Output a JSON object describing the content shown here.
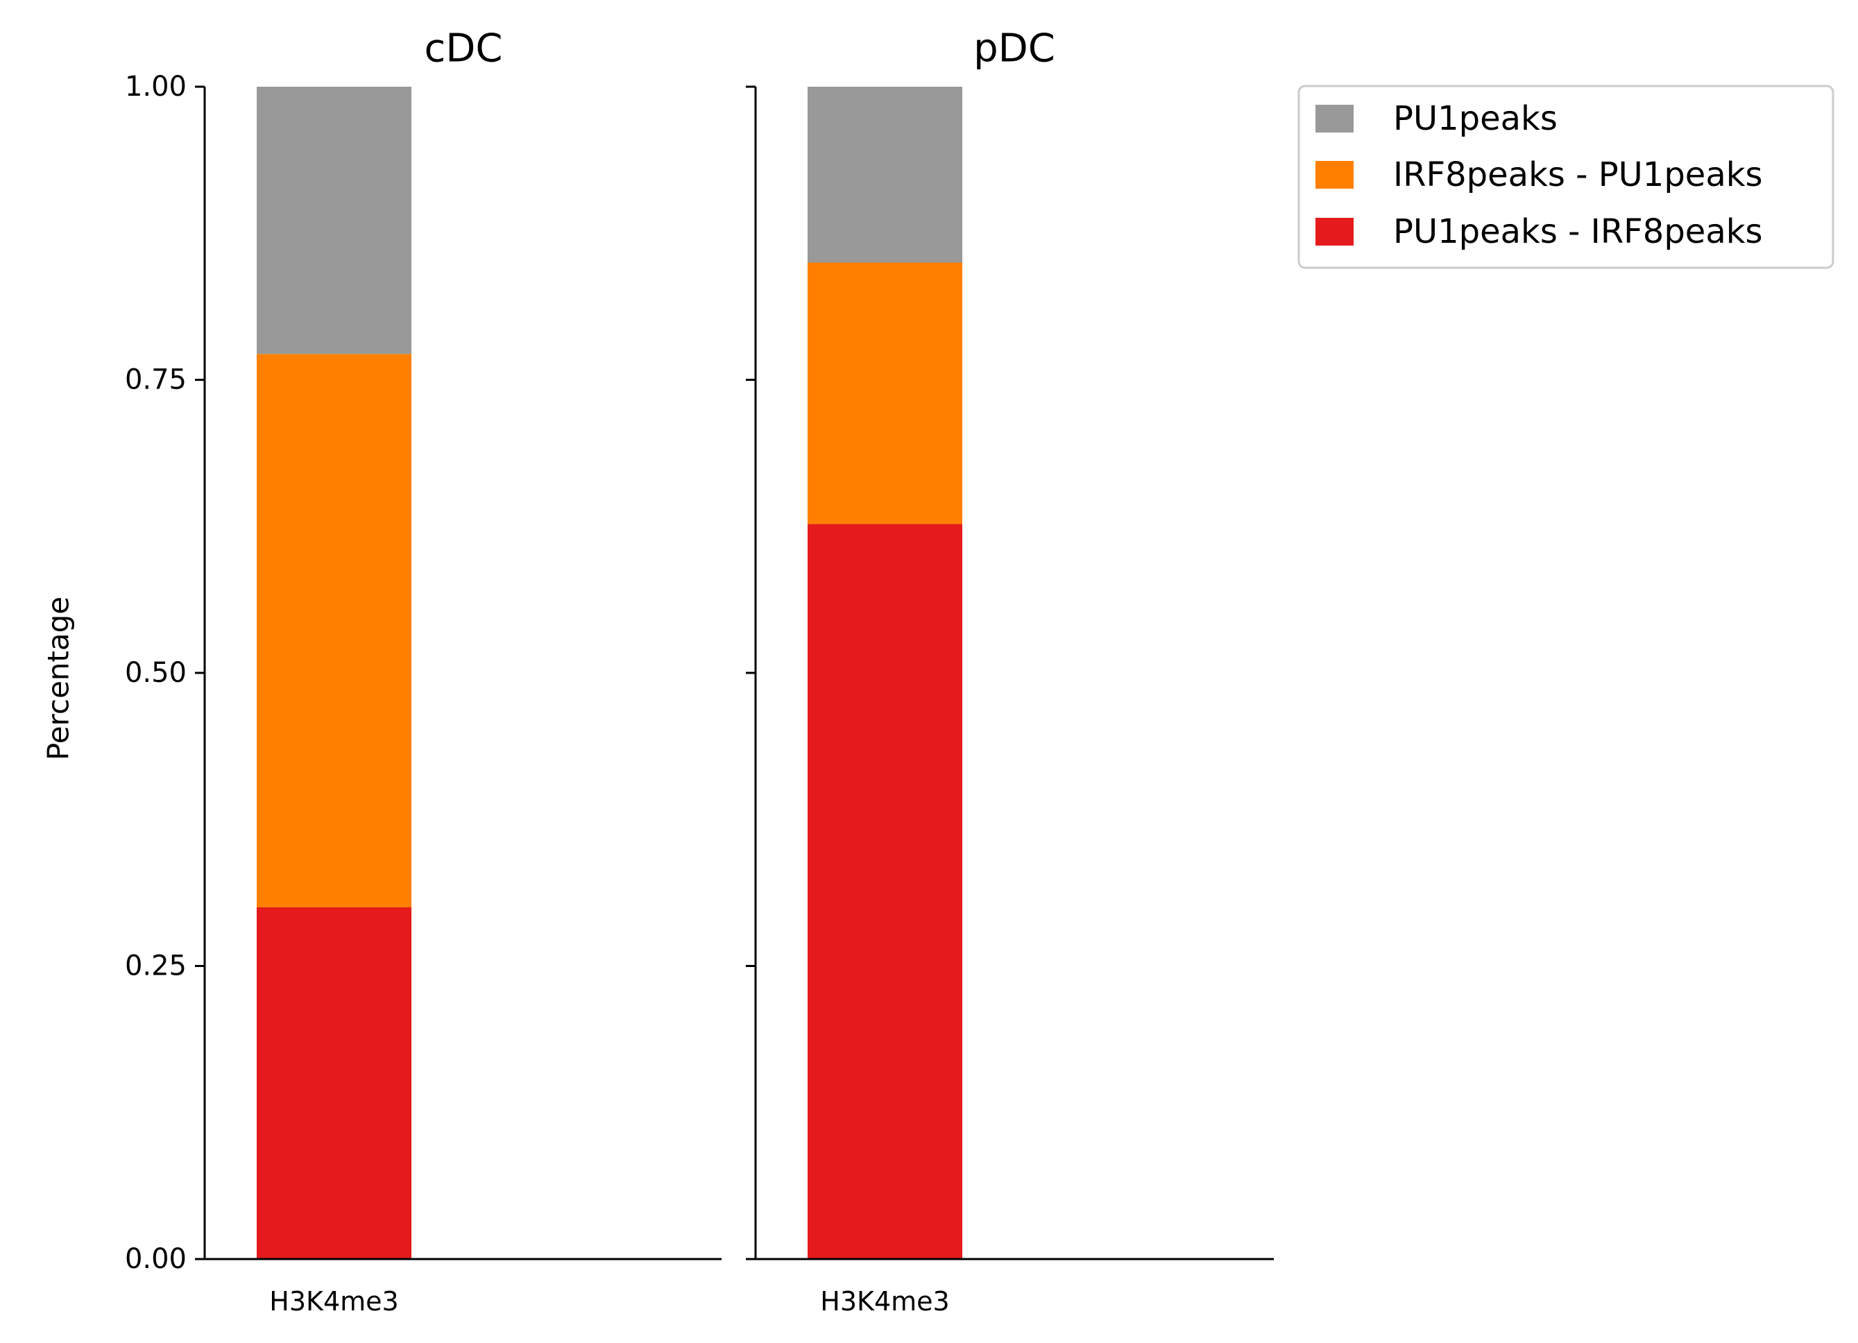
{
  "chart_data": {
    "type": "bar",
    "stacked": true,
    "ylabel": "Percentage",
    "ylim": [
      0,
      1
    ],
    "yticks": [
      "0.00",
      "0.25",
      "0.50",
      "0.75",
      "1.00"
    ],
    "legend": {
      "placement": "upper-left outside right",
      "entries": [
        {
          "name": "PU1peaks",
          "color": "#999999"
        },
        {
          "name": "IRF8peaks - PU1peaks",
          "color": "#ff7f00"
        },
        {
          "name": "PU1peaks - IRF8peaks",
          "color": "#e41a1c"
        }
      ]
    },
    "panels": [
      {
        "title": "cDC",
        "categories": [
          "H3K4me3"
        ],
        "series": [
          {
            "name": "PU1peaks - IRF8peaks",
            "color": "#e41a1c",
            "values": [
              0.3
            ]
          },
          {
            "name": "IRF8peaks - PU1peaks",
            "color": "#ff7f00",
            "values": [
              0.472
            ]
          },
          {
            "name": "PU1peaks",
            "color": "#999999",
            "values": [
              0.228
            ]
          }
        ]
      },
      {
        "title": "pDC",
        "categories": [
          "H3K4me3"
        ],
        "series": [
          {
            "name": "PU1peaks - IRF8peaks",
            "color": "#e41a1c",
            "values": [
              0.627
            ]
          },
          {
            "name": "IRF8peaks - PU1peaks",
            "color": "#ff7f00",
            "values": [
              0.223
            ]
          },
          {
            "name": "PU1peaks",
            "color": "#999999",
            "values": [
              0.15
            ]
          }
        ]
      }
    ]
  }
}
